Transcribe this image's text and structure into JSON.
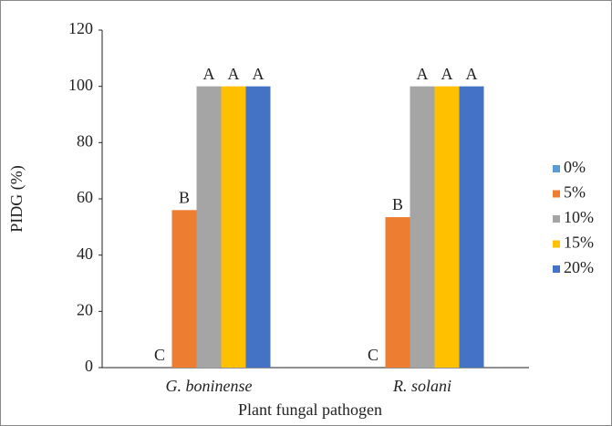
{
  "chart_data": {
    "type": "bar",
    "x_label": "Plant fungal pathogen",
    "y_label": "PIDG (%)",
    "categories": [
      "G. boninense",
      "R. solani"
    ],
    "series": [
      {
        "name": "0%",
        "color": "#5b9bd5",
        "values": [
          0,
          0
        ],
        "letters": [
          "C",
          "C"
        ]
      },
      {
        "name": "5%",
        "color": "#ed7d31",
        "values": [
          56,
          53.5
        ],
        "letters": [
          "B",
          "B"
        ]
      },
      {
        "name": "10%",
        "color": "#a5a5a5",
        "values": [
          100,
          100
        ],
        "letters": [
          "A",
          "A"
        ]
      },
      {
        "name": "15%",
        "color": "#ffc000",
        "values": [
          100,
          100
        ],
        "letters": [
          "A",
          "A"
        ]
      },
      {
        "name": "20%",
        "color": "#4472c4",
        "values": [
          100,
          100
        ],
        "letters": [
          "A",
          "A"
        ]
      }
    ],
    "ylim": [
      0,
      120
    ],
    "yticks": [
      0,
      20,
      40,
      60,
      80,
      100,
      120
    ],
    "grid": false,
    "legend": "right"
  }
}
